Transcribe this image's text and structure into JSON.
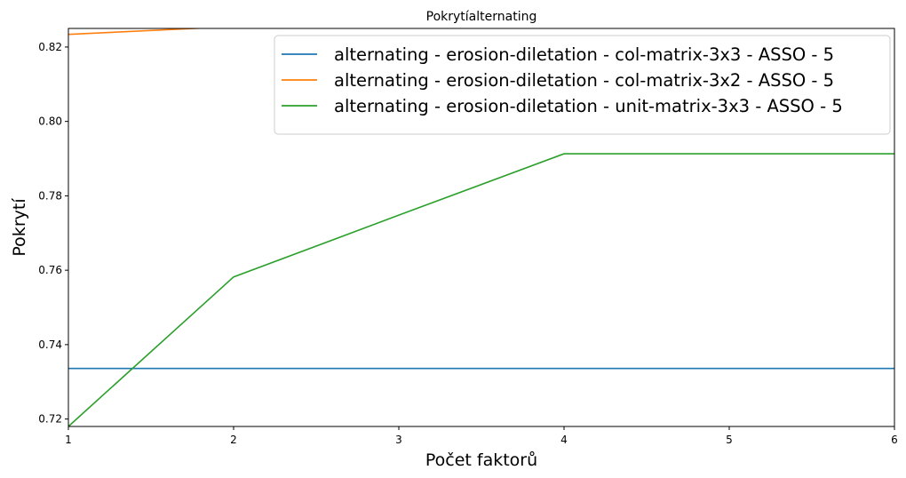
{
  "chart_data": {
    "type": "line",
    "title": "Pokrytíalternating",
    "xlabel": "Počet faktorů",
    "ylabel": "Pokrytí",
    "xlim": [
      1,
      6
    ],
    "ylim": [
      0.718,
      0.825
    ],
    "x_ticks": [
      "1",
      "2",
      "3",
      "4",
      "5",
      "6"
    ],
    "y_ticks": [
      "0.72",
      "0.74",
      "0.76",
      "0.78",
      "0.80",
      "0.82"
    ],
    "grid": false,
    "legend_position": "top-right",
    "series": [
      {
        "name": "alternating - erosion-diletation - col-matrix-3x3 - ASSO - 5",
        "color": "#1f77b4",
        "x": [
          1,
          2,
          3,
          4,
          5,
          6
        ],
        "y": [
          0.7336,
          0.7336,
          0.7336,
          0.7336,
          0.7336,
          0.7336
        ]
      },
      {
        "name": "alternating - erosion-diletation - col-matrix-3x2 - ASSO - 5",
        "color": "#ff7f0e",
        "x": [
          1,
          2,
          3,
          4,
          5,
          6
        ],
        "y": [
          0.8234,
          0.8255,
          0.8262,
          0.8266,
          0.8268,
          0.8269
        ]
      },
      {
        "name": "alternating - erosion-diletation - unit-matrix-3x3 - ASSO - 5",
        "color": "#2ca02c",
        "x": [
          1,
          2,
          3,
          4,
          5,
          6
        ],
        "y": [
          0.718,
          0.7582,
          0.7748,
          0.7913,
          0.7913,
          0.7913
        ]
      }
    ]
  }
}
